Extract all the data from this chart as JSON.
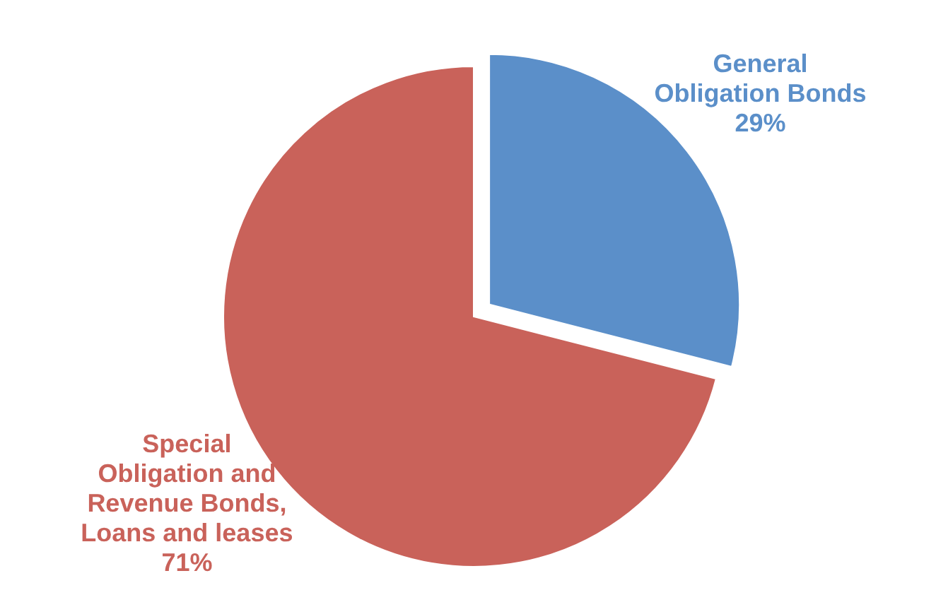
{
  "chart_data": {
    "type": "pie",
    "categories": [
      "General Obligation Bonds",
      "Special Obligation and Revenue Bonds, Loans and leases"
    ],
    "values": [
      29,
      71
    ],
    "colors": [
      "#5b8fc9",
      "#c9625a"
    ],
    "value_labels": [
      "29%",
      "71%"
    ]
  }
}
